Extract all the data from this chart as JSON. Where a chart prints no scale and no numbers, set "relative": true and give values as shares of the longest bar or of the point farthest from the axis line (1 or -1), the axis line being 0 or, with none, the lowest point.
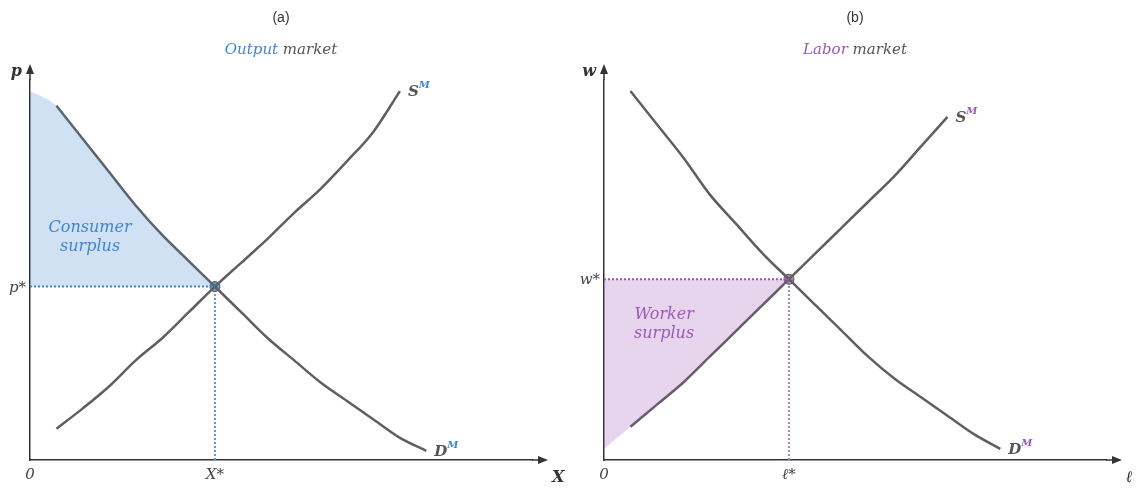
{
  "chart_data": [
    {
      "type": "line",
      "title": "(a)",
      "subtitle": "Output market",
      "xlabel": "X",
      "ylabel": "p",
      "relative": true,
      "legend": false,
      "grid": false,
      "categories": [
        "0",
        null,
        null,
        null,
        null,
        null,
        null,
        "X*",
        null,
        null,
        null,
        null,
        null,
        null,
        null,
        null,
        null,
        null,
        null,
        null
      ],
      "annotations": [
        "p*"
      ],
      "series": [
        {
          "type": "line",
          "name": "Consumer surplus",
          "color": "#3f86d0",
          "line_style": "dotted",
          "values": [
            0.47,
            0.47,
            0.47,
            0.47,
            0.47,
            0.47,
            0.47,
            0.47,
            null,
            null,
            null,
            null,
            null,
            null,
            null,
            null,
            null,
            null,
            null,
            null
          ],
          "lower": [
            0.47,
            0.47,
            0.47,
            0.47,
            0.47,
            0.47,
            0.47,
            0.47,
            null,
            null,
            null,
            null,
            null,
            null,
            null,
            null,
            null,
            null,
            null,
            null
          ],
          "upper": [
            1,
            0.96,
            0.87,
            0.78,
            0.69,
            0.61,
            0.54,
            0.47,
            null,
            null,
            null,
            null,
            null,
            null,
            null,
            null,
            null,
            null,
            null,
            null
          ]
        },
        {
          "type": "line",
          "name": "D$^{M}$",
          "color": "#5f5f5f",
          "values": [
            null,
            0.96,
            0.87,
            0.78,
            0.69,
            0.61,
            0.54,
            0.47,
            0.4,
            0.33,
            0.27,
            0.21,
            0.16,
            0.11,
            0.06,
            0.025,
            null,
            null,
            null,
            null
          ]
        },
        {
          "type": "line",
          "name": "S$^{M}$",
          "color": "#5f5f5f",
          "values": [
            null,
            0.085,
            0.14,
            0.2,
            0.27,
            0.33,
            0.4,
            0.47,
            0.535,
            0.6,
            0.67,
            0.735,
            0.81,
            0.89,
            1,
            null,
            null,
            null,
            null,
            null
          ]
        },
        {
          "type": "scatter",
          "marker": "circle",
          "color": "#5b9bd5",
          "values": [
            null,
            null,
            null,
            null,
            null,
            null,
            null,
            0.47,
            null,
            null,
            null,
            null,
            null,
            null,
            null,
            null,
            null,
            null,
            null,
            null
          ]
        }
      ]
    },
    {
      "type": "line",
      "title": "(b)",
      "subtitle": "Labor market",
      "xlabel": "ℓ",
      "ylabel": "w",
      "relative": true,
      "legend": false,
      "grid": false,
      "categories": [
        "0",
        null,
        null,
        null,
        null,
        null,
        null,
        "ℓ*",
        null,
        null,
        null,
        null,
        null,
        null,
        null,
        null,
        null,
        null,
        null,
        null
      ],
      "annotations": [
        "w*"
      ],
      "series": [
        {
          "type": "line",
          "name": "Worker surplus",
          "color": "#9b59b6",
          "line_style": "dotted",
          "values": [
            0.49,
            0.49,
            0.49,
            0.49,
            0.49,
            0.49,
            0.49,
            0.49,
            null,
            null,
            null,
            null,
            null,
            null,
            null,
            null,
            null,
            null,
            null,
            null
          ],
          "lower": [
            0.03,
            0.09,
            0.15,
            0.21,
            0.28,
            0.35,
            0.42,
            0.49,
            null,
            null,
            null,
            null,
            null,
            null,
            null,
            null,
            null,
            null,
            null,
            null
          ],
          "upper": [
            0.49,
            0.49,
            0.49,
            0.49,
            0.49,
            0.49,
            0.49,
            0.49,
            null,
            null,
            null,
            null,
            null,
            null,
            null,
            null,
            null,
            null,
            null,
            null
          ]
        },
        {
          "type": "line",
          "name": "D$^{M}$",
          "color": "#5f5f5f",
          "values": [
            null,
            1,
            0.91,
            0.82,
            0.72,
            0.64,
            0.56,
            0.49,
            0.42,
            0.35,
            0.28,
            0.22,
            0.17,
            0.12,
            0.07,
            0.03,
            null,
            null,
            null,
            null
          ]
        },
        {
          "type": "line",
          "name": "S$^{M}$",
          "color": "#5f5f5f",
          "values": [
            null,
            0.09,
            0.15,
            0.21,
            0.28,
            0.35,
            0.42,
            0.49,
            0.56,
            0.63,
            0.7,
            0.77,
            0.85,
            0.93,
            null,
            null,
            null,
            null,
            null,
            null
          ]
        },
        {
          "type": "scatter",
          "marker": "circle",
          "color": "#b07cc6",
          "values": [
            null,
            null,
            null,
            null,
            null,
            null,
            null,
            0.49,
            null,
            null,
            null,
            null,
            null,
            null,
            null,
            null,
            null,
            null,
            null,
            null
          ]
        }
      ]
    }
  ]
}
